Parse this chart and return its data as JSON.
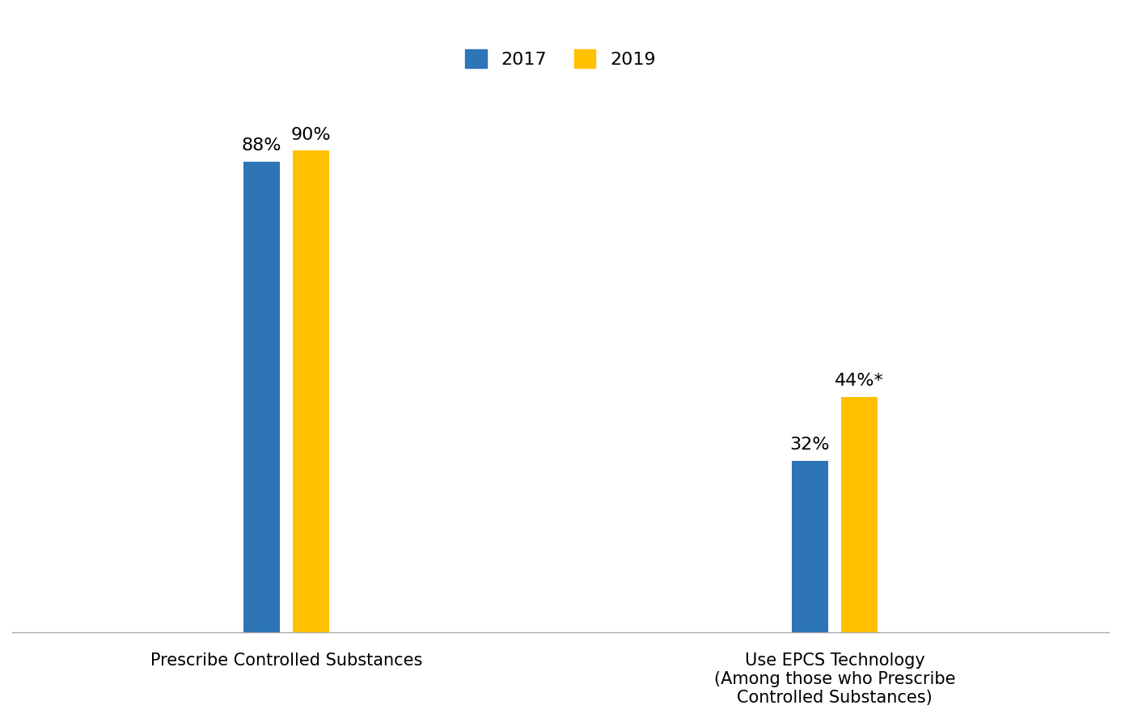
{
  "categories": [
    "Prescribe Controlled Substances",
    "Use EPCS Technology\n(Among those who Prescribe\nControlled Substances)"
  ],
  "values_2017": [
    88,
    32
  ],
  "values_2019": [
    90,
    44
  ],
  "labels_2017": [
    "88%",
    "32%"
  ],
  "labels_2019": [
    "90%",
    "44%*"
  ],
  "color_2017": "#2E75B6",
  "color_2019": "#FFC000",
  "legend_labels": [
    "2017",
    "2019"
  ],
  "bar_width": 0.13,
  "group_centers": [
    1.0,
    3.0
  ],
  "xlim": [
    0.0,
    4.0
  ],
  "ylim": [
    0,
    105
  ],
  "label_fontsize": 16,
  "tick_fontsize": 15,
  "legend_fontsize": 16,
  "background_color": "#FFFFFF"
}
